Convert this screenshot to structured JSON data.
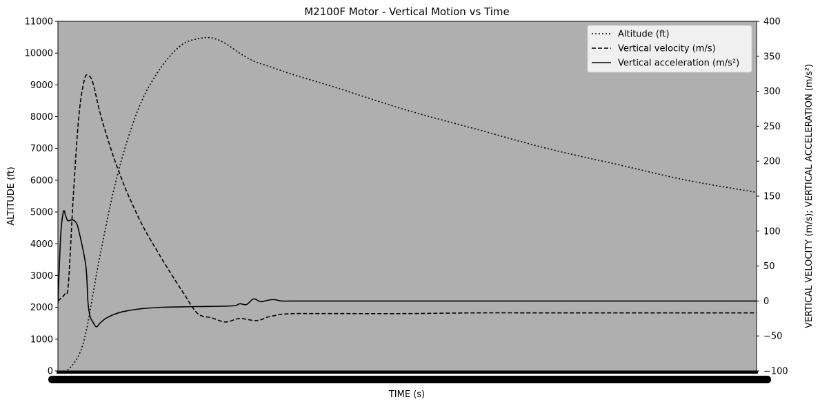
{
  "chart_data": {
    "type": "line",
    "title": "M2100F Motor - Vertical Motion vs Time",
    "xlabel": "TIME (s)",
    "ylabel_left": "ALTITUDE (ft)",
    "ylabel_right": "VERTICAL VELOCITY (m/s); VERTICAL ACCELERATION (m/s²)",
    "x_range": [
      0,
      100
    ],
    "ylim_left": [
      0,
      11000
    ],
    "ylim_right": [
      -100,
      400
    ],
    "yticks_left": [
      "0",
      "1000",
      "2000",
      "3000",
      "4000",
      "5000",
      "6000",
      "7000",
      "8000",
      "9000",
      "10000",
      "11000"
    ],
    "yticks_right": [
      "−100",
      "−50",
      "0",
      "50",
      "100",
      "150",
      "200",
      "250",
      "300",
      "350",
      "400"
    ],
    "background": "#afafaf",
    "legend_position": "upper right",
    "grid": false,
    "series": [
      {
        "name": "Altitude (ft)",
        "axis": "left",
        "style": "dotted",
        "x": [
          0,
          1.5,
          3,
          4,
          5,
          6,
          8,
          10,
          12,
          14,
          16,
          18,
          20,
          22,
          24,
          26,
          28,
          30,
          32,
          34,
          40,
          50,
          60,
          70,
          80,
          90,
          100
        ],
        "y": [
          -100,
          50,
          500,
          1200,
          2400,
          3600,
          5700,
          7300,
          8500,
          9300,
          9900,
          10300,
          10450,
          10480,
          10300,
          10000,
          9750,
          9600,
          9450,
          9300,
          8900,
          8200,
          7600,
          7000,
          6500,
          6000,
          5620
        ]
      },
      {
        "name": "Vertical velocity (m/s)",
        "axis": "right",
        "style": "dashed",
        "x": [
          0,
          1,
          1.5,
          2.2,
          3,
          3.8,
          4.4,
          5,
          6,
          7,
          8,
          9,
          10,
          12,
          14,
          16,
          18,
          20,
          22,
          24,
          26,
          28,
          29,
          30,
          31,
          32,
          34,
          36,
          38,
          40,
          50,
          60,
          70,
          80,
          90,
          100
        ],
        "y": [
          0,
          10,
          25,
          150,
          265,
          317,
          322,
          312,
          270,
          236,
          205,
          178,
          153,
          110,
          75,
          42,
          11,
          -18,
          -24,
          -30,
          -25,
          -28,
          -27,
          -23,
          -21,
          -19,
          -18,
          -18,
          -18,
          -18,
          -18,
          -17,
          -17,
          -17,
          -17,
          -17
        ]
      },
      {
        "name": "Vertical acceleration (m/s²)",
        "axis": "right",
        "style": "solid",
        "x": [
          0,
          0.4,
          0.8,
          1.1,
          1.4,
          2.1,
          2.6,
          3,
          4,
          4.3,
          4.6,
          5,
          5.5,
          6,
          7,
          9,
          12,
          15,
          20,
          25,
          26,
          27,
          28,
          29,
          30,
          31,
          32,
          34,
          36,
          38,
          40,
          50,
          60,
          70,
          80,
          90,
          100
        ],
        "y": [
          -4,
          95,
          128,
          122,
          115,
          116,
          112,
          100,
          50,
          -2,
          -22,
          -30,
          -37,
          -32,
          -24,
          -16,
          -11,
          -9,
          -8,
          -7,
          -4,
          -5,
          3,
          -1,
          1,
          2,
          0,
          0,
          0,
          0,
          0,
          0,
          0,
          0,
          0,
          0,
          0
        ]
      }
    ]
  }
}
